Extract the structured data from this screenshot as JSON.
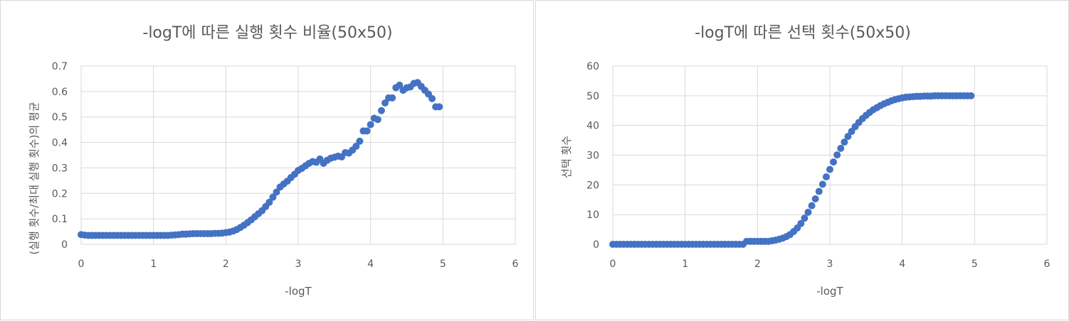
{
  "chart_data": [
    {
      "type": "scatter",
      "title": "-logT에 따른 실행 횟수 비율(50x50)",
      "xlabel": "-logT",
      "ylabel": "(실행 횟수/최대 실행 횟수)의 평균",
      "xlim": [
        0,
        6
      ],
      "ylim": [
        0,
        0.7
      ],
      "xticks": [
        "0",
        "1",
        "2",
        "3",
        "4",
        "5",
        "6"
      ],
      "yticks": [
        "0",
        "0.1",
        "0.2",
        "0.3",
        "0.4",
        "0.5",
        "0.6",
        "0.7"
      ],
      "grid": true,
      "color": "#4472c4",
      "series": [
        {
          "x": [
            0.0,
            0.05,
            0.1,
            0.15,
            0.2,
            0.25,
            0.3,
            0.35,
            0.4,
            0.45,
            0.5,
            0.55,
            0.6,
            0.65,
            0.7,
            0.75,
            0.8,
            0.85,
            0.9,
            0.95,
            1.0,
            1.05,
            1.1,
            1.15,
            1.2,
            1.25,
            1.3,
            1.35,
            1.4,
            1.45,
            1.5,
            1.55,
            1.6,
            1.65,
            1.7,
            1.75,
            1.8,
            1.85,
            1.9,
            1.95,
            2.0,
            2.05,
            2.1,
            2.15,
            2.2,
            2.25,
            2.3,
            2.35,
            2.4,
            2.45,
            2.5,
            2.55,
            2.6,
            2.65,
            2.7,
            2.75,
            2.8,
            2.85,
            2.9,
            2.95,
            3.0,
            3.05,
            3.1,
            3.15,
            3.2,
            3.25,
            3.3,
            3.35,
            3.4,
            3.45,
            3.5,
            3.55,
            3.6,
            3.65,
            3.7,
            3.75,
            3.8,
            3.85,
            3.9,
            3.95,
            4.0,
            4.05,
            4.1,
            4.15,
            4.2,
            4.25,
            4.3,
            4.35,
            4.4,
            4.45,
            4.5,
            4.55,
            4.6,
            4.65,
            4.7,
            4.75,
            4.8,
            4.85,
            4.9,
            4.95
          ],
          "y": [
            0.038,
            0.036,
            0.035,
            0.035,
            0.035,
            0.035,
            0.035,
            0.035,
            0.035,
            0.035,
            0.035,
            0.035,
            0.035,
            0.035,
            0.035,
            0.035,
            0.035,
            0.035,
            0.035,
            0.035,
            0.035,
            0.035,
            0.035,
            0.035,
            0.035,
            0.036,
            0.037,
            0.038,
            0.04,
            0.04,
            0.041,
            0.042,
            0.042,
            0.042,
            0.042,
            0.042,
            0.042,
            0.043,
            0.043,
            0.044,
            0.046,
            0.048,
            0.052,
            0.058,
            0.066,
            0.075,
            0.085,
            0.096,
            0.108,
            0.12,
            0.132,
            0.148,
            0.165,
            0.185,
            0.205,
            0.225,
            0.237,
            0.248,
            0.262,
            0.275,
            0.29,
            0.298,
            0.308,
            0.318,
            0.325,
            0.322,
            0.335,
            0.318,
            0.33,
            0.338,
            0.342,
            0.346,
            0.343,
            0.36,
            0.358,
            0.37,
            0.385,
            0.405,
            0.445,
            0.445,
            0.47,
            0.495,
            0.49,
            0.525,
            0.555,
            0.575,
            0.575,
            0.615,
            0.625,
            0.605,
            0.615,
            0.618,
            0.632,
            0.635,
            0.62,
            0.605,
            0.59,
            0.572,
            0.54,
            0.54
          ]
        }
      ]
    },
    {
      "type": "scatter",
      "title": "-logT에 따른 선택 횟수(50x50)",
      "xlabel": "-logT",
      "ylabel": "선택 횟수",
      "xlim": [
        0,
        6
      ],
      "ylim": [
        0,
        60
      ],
      "xticks": [
        "0",
        "1",
        "2",
        "3",
        "4",
        "5",
        "6"
      ],
      "yticks": [
        "0",
        "10",
        "20",
        "30",
        "40",
        "50",
        "60"
      ],
      "grid": true,
      "color": "#4472c4",
      "series": [
        {
          "x": [
            0.0,
            0.05,
            0.1,
            0.15,
            0.2,
            0.25,
            0.3,
            0.35,
            0.4,
            0.45,
            0.5,
            0.55,
            0.6,
            0.65,
            0.7,
            0.75,
            0.8,
            0.85,
            0.9,
            0.95,
            1.0,
            1.05,
            1.1,
            1.15,
            1.2,
            1.25,
            1.3,
            1.35,
            1.4,
            1.45,
            1.5,
            1.55,
            1.6,
            1.65,
            1.7,
            1.75,
            1.8,
            1.85,
            1.9,
            1.95,
            2.0,
            2.05,
            2.1,
            2.15,
            2.2,
            2.25,
            2.3,
            2.35,
            2.4,
            2.45,
            2.5,
            2.55,
            2.6,
            2.65,
            2.7,
            2.75,
            2.8,
            2.85,
            2.9,
            2.95,
            3.0,
            3.05,
            3.1,
            3.15,
            3.2,
            3.25,
            3.3,
            3.35,
            3.4,
            3.45,
            3.5,
            3.55,
            3.6,
            3.65,
            3.7,
            3.75,
            3.8,
            3.85,
            3.9,
            3.95,
            4.0,
            4.05,
            4.1,
            4.15,
            4.2,
            4.25,
            4.3,
            4.35,
            4.4,
            4.45,
            4.5,
            4.55,
            4.6,
            4.65,
            4.7,
            4.75,
            4.8,
            4.85,
            4.9,
            4.95
          ],
          "y": [
            0,
            0,
            0,
            0,
            0,
            0,
            0,
            0,
            0,
            0,
            0,
            0,
            0,
            0,
            0,
            0,
            0,
            0,
            0,
            0,
            0,
            0,
            0,
            0,
            0,
            0,
            0,
            0,
            0,
            0,
            0,
            0,
            0,
            0,
            0,
            0,
            0,
            1,
            1,
            1,
            1,
            1,
            1,
            1,
            1.2,
            1.4,
            1.7,
            2.1,
            2.6,
            3.3,
            4.3,
            5.5,
            7.0,
            8.8,
            10.8,
            13.0,
            15.3,
            17.8,
            20.2,
            22.7,
            25.2,
            27.7,
            30.1,
            32.3,
            34.4,
            36.3,
            38.0,
            39.6,
            41.0,
            42.3,
            43.4,
            44.4,
            45.3,
            46.0,
            46.7,
            47.3,
            47.8,
            48.3,
            48.7,
            49.0,
            49.3,
            49.5,
            49.6,
            49.7,
            49.8,
            49.8,
            49.9,
            49.9,
            49.9,
            50,
            50,
            50,
            50,
            50,
            50,
            50,
            50,
            50,
            50,
            50
          ]
        }
      ]
    }
  ]
}
